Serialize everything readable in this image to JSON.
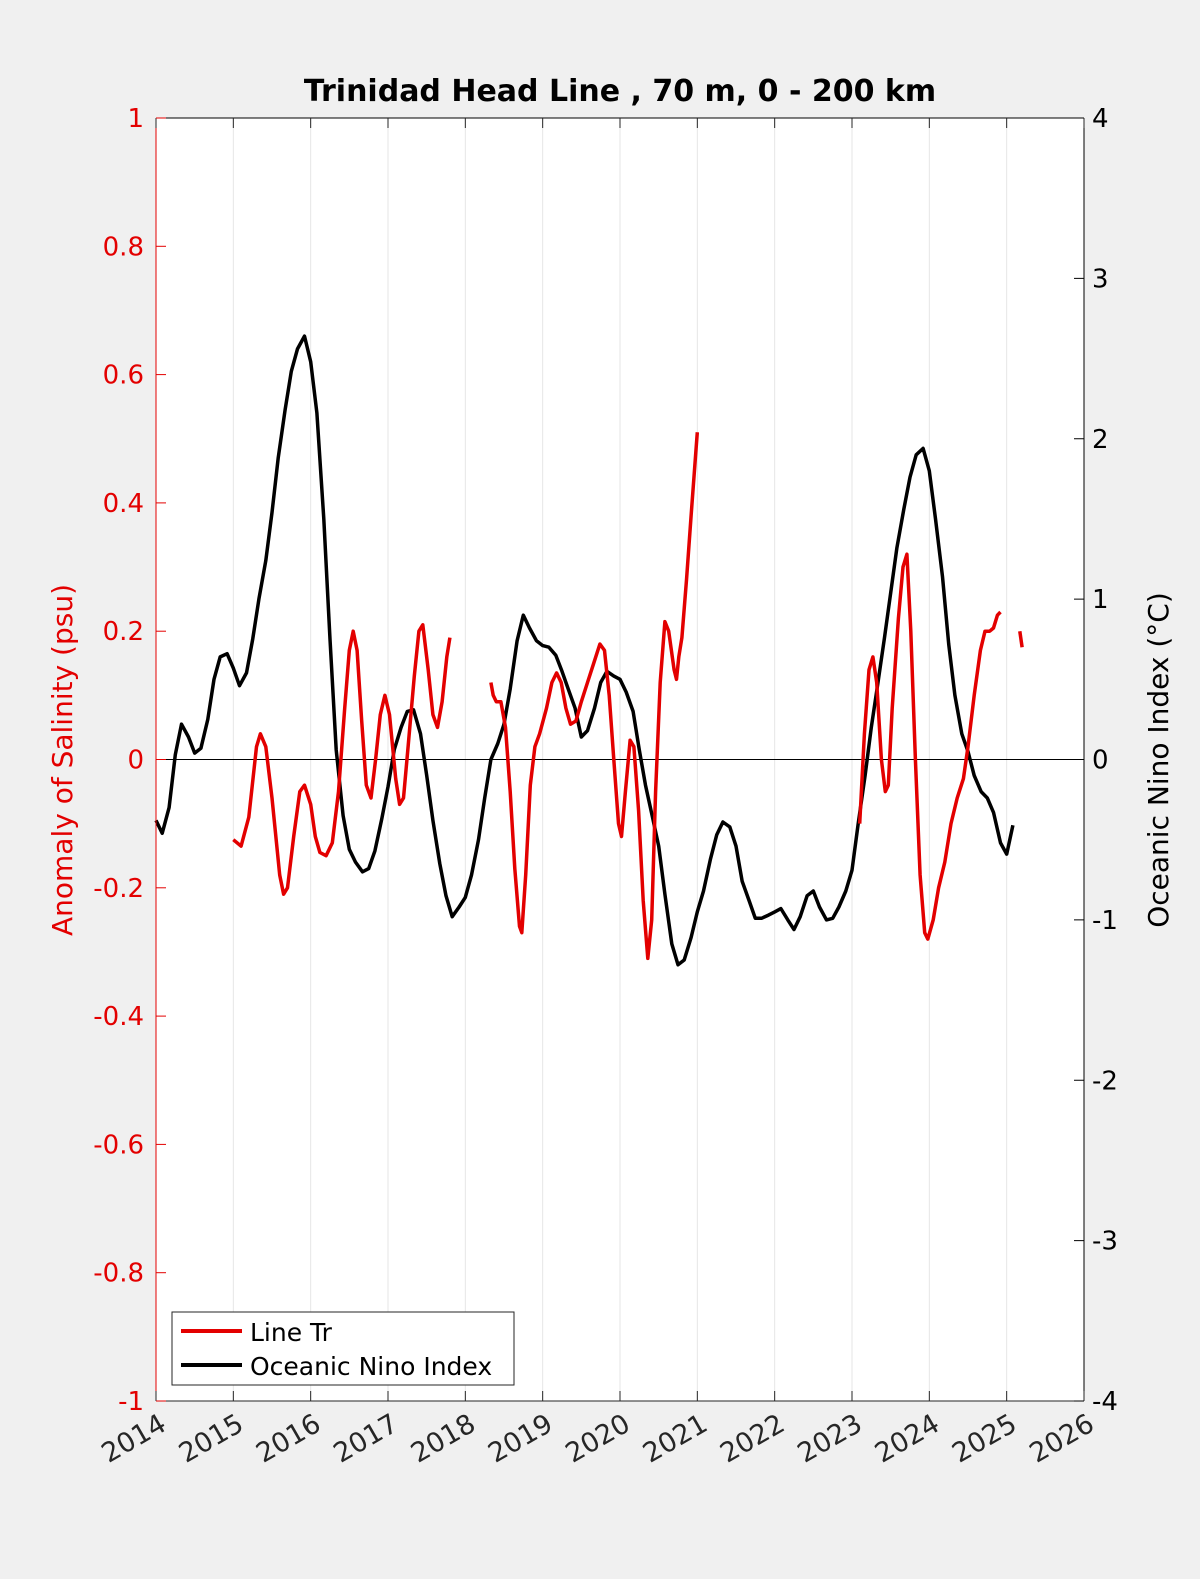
{
  "chart_data": {
    "type": "line",
    "title": "Trinidad Head Line , 70 m, 0 - 200 km",
    "xlabel": "",
    "ylabel_left": "Anomaly of Salinity (psu)",
    "ylabel_right": "Oceanic Nino Index (°C)",
    "xlim": [
      2014,
      2026
    ],
    "ylim_left": [
      -1,
      1
    ],
    "ylim_right": [
      -4,
      4
    ],
    "x_ticks": [
      "2014",
      "2015",
      "2016",
      "2017",
      "2018",
      "2019",
      "2020",
      "2021",
      "2022",
      "2023",
      "2024",
      "2025",
      "2026"
    ],
    "y_ticks_left": [
      "1",
      "0.8",
      "0.6",
      "0.4",
      "0.2",
      "0",
      "-0.2",
      "-0.4",
      "-0.6",
      "-0.8",
      "-1"
    ],
    "y_ticks_right": [
      "4",
      "3",
      "2",
      "1",
      "0",
      "-1",
      "-2",
      "-3",
      "-4"
    ],
    "grid": "vertical",
    "legend_position": "bottom-left",
    "colors": {
      "salinity": "#e30000",
      "oni": "#000000",
      "left_axis": "#e30000",
      "right_axis": "#000000"
    },
    "series": [
      {
        "name": "Line Tr",
        "axis": "left",
        "segments": [
          [
            [
              2015.0,
              -0.125
            ],
            [
              2015.1,
              -0.135
            ],
            [
              2015.2,
              -0.09
            ],
            [
              2015.3,
              0.02
            ],
            [
              2015.35,
              0.04
            ],
            [
              2015.42,
              0.02
            ],
            [
              2015.5,
              -0.06
            ],
            [
              2015.6,
              -0.18
            ],
            [
              2015.65,
              -0.21
            ],
            [
              2015.7,
              -0.2
            ],
            [
              2015.78,
              -0.12
            ],
            [
              2015.86,
              -0.05
            ],
            [
              2015.92,
              -0.04
            ],
            [
              2016.0,
              -0.07
            ],
            [
              2016.06,
              -0.12
            ],
            [
              2016.12,
              -0.145
            ],
            [
              2016.2,
              -0.15
            ],
            [
              2016.28,
              -0.13
            ],
            [
              2016.36,
              -0.05
            ],
            [
              2016.44,
              0.08
            ],
            [
              2016.5,
              0.17
            ],
            [
              2016.55,
              0.2
            ],
            [
              2016.6,
              0.17
            ],
            [
              2016.66,
              0.06
            ],
            [
              2016.72,
              -0.04
            ],
            [
              2016.78,
              -0.06
            ],
            [
              2016.84,
              0.0
            ],
            [
              2016.9,
              0.07
            ],
            [
              2016.96,
              0.1
            ],
            [
              2017.02,
              0.07
            ],
            [
              2017.1,
              -0.03
            ],
            [
              2017.15,
              -0.07
            ],
            [
              2017.2,
              -0.06
            ],
            [
              2017.26,
              0.02
            ],
            [
              2017.34,
              0.13
            ],
            [
              2017.4,
              0.2
            ],
            [
              2017.45,
              0.21
            ],
            [
              2017.52,
              0.14
            ],
            [
              2017.58,
              0.07
            ],
            [
              2017.64,
              0.05
            ],
            [
              2017.7,
              0.09
            ],
            [
              2017.76,
              0.16
            ],
            [
              2017.8,
              0.19
            ]
          ],
          [
            [
              2018.33,
              0.12
            ],
            [
              2018.36,
              0.1
            ],
            [
              2018.4,
              0.09
            ],
            [
              2018.46,
              0.09
            ],
            [
              2018.52,
              0.05
            ],
            [
              2018.58,
              -0.05
            ],
            [
              2018.64,
              -0.17
            ],
            [
              2018.7,
              -0.26
            ],
            [
              2018.73,
              -0.27
            ],
            [
              2018.78,
              -0.18
            ],
            [
              2018.84,
              -0.04
            ],
            [
              2018.9,
              0.02
            ],
            [
              2018.96,
              0.04
            ],
            [
              2019.05,
              0.08
            ],
            [
              2019.12,
              0.12
            ],
            [
              2019.18,
              0.135
            ],
            [
              2019.24,
              0.12
            ],
            [
              2019.3,
              0.08
            ],
            [
              2019.36,
              0.055
            ],
            [
              2019.43,
              0.06
            ],
            [
              2019.5,
              0.09
            ],
            [
              2019.58,
              0.12
            ],
            [
              2019.66,
              0.15
            ],
            [
              2019.74,
              0.18
            ],
            [
              2019.8,
              0.17
            ],
            [
              2019.86,
              0.1
            ],
            [
              2019.92,
              0.0
            ],
            [
              2019.98,
              -0.1
            ],
            [
              2020.02,
              -0.12
            ],
            [
              2020.07,
              -0.05
            ],
            [
              2020.13,
              0.03
            ],
            [
              2020.18,
              0.02
            ],
            [
              2020.24,
              -0.08
            ],
            [
              2020.3,
              -0.22
            ],
            [
              2020.36,
              -0.31
            ],
            [
              2020.41,
              -0.25
            ],
            [
              2020.46,
              -0.05
            ],
            [
              2020.52,
              0.12
            ],
            [
              2020.58,
              0.215
            ],
            [
              2020.63,
              0.2
            ],
            [
              2020.7,
              0.14
            ],
            [
              2020.73,
              0.125
            ],
            [
              2020.76,
              0.16
            ],
            [
              2020.8,
              0.19
            ],
            [
              2020.86,
              0.28
            ],
            [
              2020.92,
              0.38
            ],
            [
              2021.0,
              0.51
            ]
          ],
          [
            [
              2023.1,
              -0.1
            ],
            [
              2023.16,
              0.04
            ],
            [
              2023.22,
              0.14
            ],
            [
              2023.27,
              0.16
            ],
            [
              2023.32,
              0.12
            ],
            [
              2023.38,
              0.0
            ],
            [
              2023.43,
              -0.05
            ],
            [
              2023.47,
              -0.04
            ],
            [
              2023.52,
              0.08
            ],
            [
              2023.6,
              0.22
            ],
            [
              2023.66,
              0.3
            ],
            [
              2023.71,
              0.32
            ],
            [
              2023.76,
              0.2
            ],
            [
              2023.82,
              0.0
            ],
            [
              2023.88,
              -0.18
            ],
            [
              2023.94,
              -0.27
            ],
            [
              2023.98,
              -0.28
            ],
            [
              2024.05,
              -0.25
            ],
            [
              2024.12,
              -0.2
            ],
            [
              2024.2,
              -0.16
            ],
            [
              2024.28,
              -0.1
            ],
            [
              2024.36,
              -0.06
            ],
            [
              2024.44,
              -0.03
            ],
            [
              2024.5,
              0.02
            ],
            [
              2024.58,
              0.1
            ],
            [
              2024.66,
              0.17
            ],
            [
              2024.72,
              0.2
            ],
            [
              2024.78,
              0.2
            ],
            [
              2024.83,
              0.205
            ],
            [
              2024.88,
              0.225
            ],
            [
              2024.92,
              0.23
            ]
          ],
          [
            [
              2025.17,
              0.2
            ],
            [
              2025.2,
              0.175
            ]
          ]
        ]
      },
      {
        "name": "Oceanic Nino Index",
        "axis": "right",
        "segments": [
          [
            [
              2014.0,
              -0.38
            ],
            [
              2014.08,
              -0.46
            ],
            [
              2014.17,
              -0.3
            ],
            [
              2014.25,
              0.03
            ],
            [
              2014.33,
              0.22
            ],
            [
              2014.42,
              0.14
            ],
            [
              2014.5,
              0.04
            ],
            [
              2014.58,
              0.07
            ],
            [
              2014.67,
              0.25
            ],
            [
              2014.75,
              0.5
            ],
            [
              2014.83,
              0.64
            ],
            [
              2014.92,
              0.66
            ],
            [
              2015.0,
              0.57
            ],
            [
              2015.08,
              0.46
            ],
            [
              2015.17,
              0.54
            ],
            [
              2015.25,
              0.75
            ],
            [
              2015.33,
              1.0
            ],
            [
              2015.42,
              1.24
            ],
            [
              2015.5,
              1.54
            ],
            [
              2015.58,
              1.88
            ],
            [
              2015.67,
              2.18
            ],
            [
              2015.75,
              2.42
            ],
            [
              2015.83,
              2.56
            ],
            [
              2015.92,
              2.64
            ],
            [
              2016.0,
              2.48
            ],
            [
              2016.08,
              2.16
            ],
            [
              2016.17,
              1.5
            ],
            [
              2016.25,
              0.75
            ],
            [
              2016.33,
              0.06
            ],
            [
              2016.42,
              -0.35
            ],
            [
              2016.5,
              -0.56
            ],
            [
              2016.58,
              -0.64
            ],
            [
              2016.67,
              -0.7
            ],
            [
              2016.75,
              -0.68
            ],
            [
              2016.83,
              -0.57
            ],
            [
              2016.92,
              -0.37
            ],
            [
              2017.0,
              -0.17
            ],
            [
              2017.08,
              0.06
            ],
            [
              2017.17,
              0.2
            ],
            [
              2017.25,
              0.3
            ],
            [
              2017.33,
              0.31
            ],
            [
              2017.42,
              0.16
            ],
            [
              2017.5,
              -0.1
            ],
            [
              2017.58,
              -0.38
            ],
            [
              2017.67,
              -0.65
            ],
            [
              2017.75,
              -0.85
            ],
            [
              2017.83,
              -0.98
            ],
            [
              2017.92,
              -0.92
            ],
            [
              2018.0,
              -0.86
            ],
            [
              2018.08,
              -0.72
            ],
            [
              2018.17,
              -0.5
            ],
            [
              2018.25,
              -0.24
            ],
            [
              2018.33,
              0.0
            ],
            [
              2018.42,
              0.1
            ],
            [
              2018.5,
              0.22
            ],
            [
              2018.58,
              0.44
            ],
            [
              2018.67,
              0.74
            ],
            [
              2018.75,
              0.9
            ],
            [
              2018.83,
              0.82
            ],
            [
              2018.92,
              0.74
            ],
            [
              2019.0,
              0.71
            ],
            [
              2019.08,
              0.7
            ],
            [
              2019.17,
              0.65
            ],
            [
              2019.25,
              0.55
            ],
            [
              2019.33,
              0.44
            ],
            [
              2019.42,
              0.32
            ],
            [
              2019.5,
              0.14
            ],
            [
              2019.58,
              0.18
            ],
            [
              2019.67,
              0.32
            ],
            [
              2019.75,
              0.48
            ],
            [
              2019.83,
              0.55
            ],
            [
              2019.92,
              0.52
            ],
            [
              2020.0,
              0.5
            ],
            [
              2020.08,
              0.42
            ],
            [
              2020.17,
              0.3
            ],
            [
              2020.25,
              0.06
            ],
            [
              2020.33,
              -0.16
            ],
            [
              2020.42,
              -0.36
            ],
            [
              2020.5,
              -0.54
            ],
            [
              2020.58,
              -0.84
            ],
            [
              2020.67,
              -1.15
            ],
            [
              2020.75,
              -1.28
            ],
            [
              2020.83,
              -1.25
            ],
            [
              2020.92,
              -1.11
            ],
            [
              2021.0,
              -0.95
            ],
            [
              2021.08,
              -0.82
            ],
            [
              2021.17,
              -0.62
            ],
            [
              2021.25,
              -0.47
            ],
            [
              2021.33,
              -0.39
            ],
            [
              2021.42,
              -0.42
            ],
            [
              2021.5,
              -0.54
            ],
            [
              2021.58,
              -0.76
            ],
            [
              2021.67,
              -0.88
            ],
            [
              2021.75,
              -0.99
            ],
            [
              2021.83,
              -0.99
            ],
            [
              2021.92,
              -0.97
            ],
            [
              2022.0,
              -0.95
            ],
            [
              2022.08,
              -0.93
            ],
            [
              2022.17,
              -1.0
            ],
            [
              2022.25,
              -1.06
            ],
            [
              2022.33,
              -0.98
            ],
            [
              2022.42,
              -0.85
            ],
            [
              2022.5,
              -0.82
            ],
            [
              2022.58,
              -0.92
            ],
            [
              2022.67,
              -1.0
            ],
            [
              2022.75,
              -0.99
            ],
            [
              2022.83,
              -0.92
            ],
            [
              2022.92,
              -0.82
            ],
            [
              2023.0,
              -0.69
            ],
            [
              2023.08,
              -0.4
            ],
            [
              2023.17,
              -0.1
            ],
            [
              2023.25,
              0.2
            ],
            [
              2023.33,
              0.46
            ],
            [
              2023.42,
              0.76
            ],
            [
              2023.5,
              1.04
            ],
            [
              2023.58,
              1.32
            ],
            [
              2023.67,
              1.56
            ],
            [
              2023.75,
              1.76
            ],
            [
              2023.83,
              1.9
            ],
            [
              2023.92,
              1.94
            ],
            [
              2024.0,
              1.8
            ],
            [
              2024.08,
              1.5
            ],
            [
              2024.17,
              1.14
            ],
            [
              2024.25,
              0.72
            ],
            [
              2024.33,
              0.4
            ],
            [
              2024.42,
              0.16
            ],
            [
              2024.5,
              0.05
            ],
            [
              2024.58,
              -0.1
            ],
            [
              2024.67,
              -0.2
            ],
            [
              2024.75,
              -0.24
            ],
            [
              2024.83,
              -0.33
            ],
            [
              2024.92,
              -0.52
            ],
            [
              2025.0,
              -0.59
            ],
            [
              2025.08,
              -0.41
            ]
          ]
        ]
      }
    ]
  },
  "legend": {
    "items": [
      {
        "label": "Line Tr",
        "color": "#e30000"
      },
      {
        "label": "Oceanic Nino Index",
        "color": "#000000"
      }
    ]
  }
}
